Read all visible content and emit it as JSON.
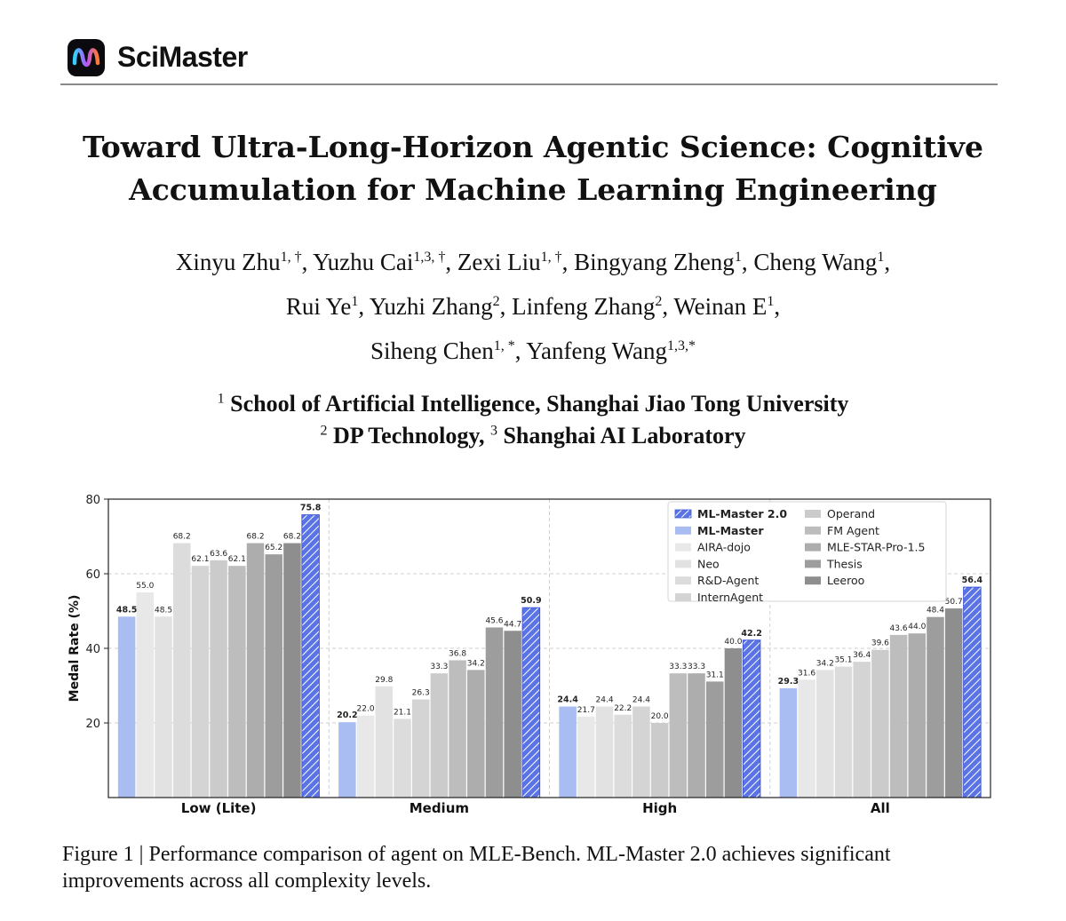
{
  "header": {
    "brand": "SciMaster"
  },
  "paper": {
    "title_line1": "Toward Ultra-Long-Horizon Agentic Science: Cognitive",
    "title_line2": "Accumulation for Machine Learning Engineering",
    "authors_line1": [
      {
        "name": "Xinyu Zhu",
        "sup": "1, †",
        "sep": ", "
      },
      {
        "name": "Yuzhu Cai",
        "sup": "1,3, †",
        "sep": ", "
      },
      {
        "name": "Zexi Liu",
        "sup": "1, †",
        "sep": ", "
      },
      {
        "name": "Bingyang Zheng",
        "sup": "1",
        "sep": ", "
      },
      {
        "name": "Cheng Wang",
        "sup": "1",
        "sep": ","
      }
    ],
    "authors_line2": [
      {
        "name": "Rui Ye",
        "sup": "1",
        "sep": ", "
      },
      {
        "name": "Yuzhi Zhang",
        "sup": "2",
        "sep": ", "
      },
      {
        "name": "Linfeng Zhang",
        "sup": "2",
        "sep": ", "
      },
      {
        "name": "Weinan E",
        "sup": "1",
        "sep": ","
      }
    ],
    "authors_line3": [
      {
        "name": "Siheng Chen",
        "sup": "1, *",
        "sep": ", "
      },
      {
        "name": "Yanfeng Wang",
        "sup": "1,3,*",
        "sep": ""
      }
    ],
    "affiliation1": {
      "sup": "1",
      "text": "School of Artificial Intelligence, Shanghai Jiao Tong University"
    },
    "affiliation2": {
      "sup1": "2",
      "text1": "DP Technology, ",
      "sup2": "3",
      "text2": "Shanghai AI Laboratory"
    },
    "caption": "Figure 1 | Performance comparison of agent on MLE-Bench. ML-Master 2.0 achieves significant improvements across all complexity levels."
  },
  "chart_data": {
    "type": "bar",
    "title": "",
    "xlabel": "",
    "ylabel": "Medal Rate (%)",
    "ylim": [
      0,
      80
    ],
    "yticks": [
      20,
      40,
      60,
      80
    ],
    "grid": true,
    "legend_position": "top-right",
    "categories": [
      "Low (Lite)",
      "Medium",
      "High",
      "All"
    ],
    "series": [
      {
        "name": "ML-Master",
        "color": "#aabdf3",
        "hatch": false,
        "bold": true,
        "values": [
          48.5,
          20.2,
          24.4,
          29.3
        ]
      },
      {
        "name": "AIRA-dojo",
        "color": "#e8e8e8",
        "hatch": false,
        "bold": false,
        "values": [
          55.0,
          22.0,
          21.7,
          31.6
        ]
      },
      {
        "name": "Neo",
        "color": "#e2e2e2",
        "hatch": false,
        "bold": false,
        "values": [
          48.5,
          29.8,
          24.4,
          34.2
        ]
      },
      {
        "name": "R&D-Agent",
        "color": "#dcdcdc",
        "hatch": false,
        "bold": false,
        "values": [
          68.2,
          21.1,
          22.2,
          35.1
        ]
      },
      {
        "name": "InternAgent",
        "color": "#d4d4d4",
        "hatch": false,
        "bold": false,
        "values": [
          62.1,
          26.3,
          24.4,
          36.4
        ]
      },
      {
        "name": "Operand",
        "color": "#cbcbcb",
        "hatch": false,
        "bold": false,
        "values": [
          63.6,
          33.3,
          20.0,
          39.6
        ]
      },
      {
        "name": "FM Agent",
        "color": "#bdbdbd",
        "hatch": false,
        "bold": false,
        "values": [
          62.1,
          36.8,
          33.3,
          43.6
        ]
      },
      {
        "name": "MLE-STAR-Pro-1.5",
        "color": "#adadad",
        "hatch": false,
        "bold": false,
        "values": [
          68.2,
          34.2,
          33.3,
          44.0
        ]
      },
      {
        "name": "Thesis",
        "color": "#9d9d9d",
        "hatch": false,
        "bold": false,
        "values": [
          65.2,
          45.6,
          31.1,
          48.4
        ]
      },
      {
        "name": "Leeroo",
        "color": "#8e8e8e",
        "hatch": false,
        "bold": false,
        "values": [
          68.2,
          44.7,
          40.0,
          50.7
        ]
      },
      {
        "name": "ML-Master 2.0",
        "color": "#5a74e6",
        "hatch": true,
        "bold": true,
        "values": [
          75.8,
          50.9,
          42.2,
          56.4
        ]
      }
    ],
    "legend_order": [
      "ML-Master 2.0",
      "ML-Master",
      "AIRA-dojo",
      "Neo",
      "R&D-Agent",
      "InternAgent",
      "Operand",
      "FM Agent",
      "MLE-STAR-Pro-1.5",
      "Thesis",
      "Leeroo"
    ]
  }
}
